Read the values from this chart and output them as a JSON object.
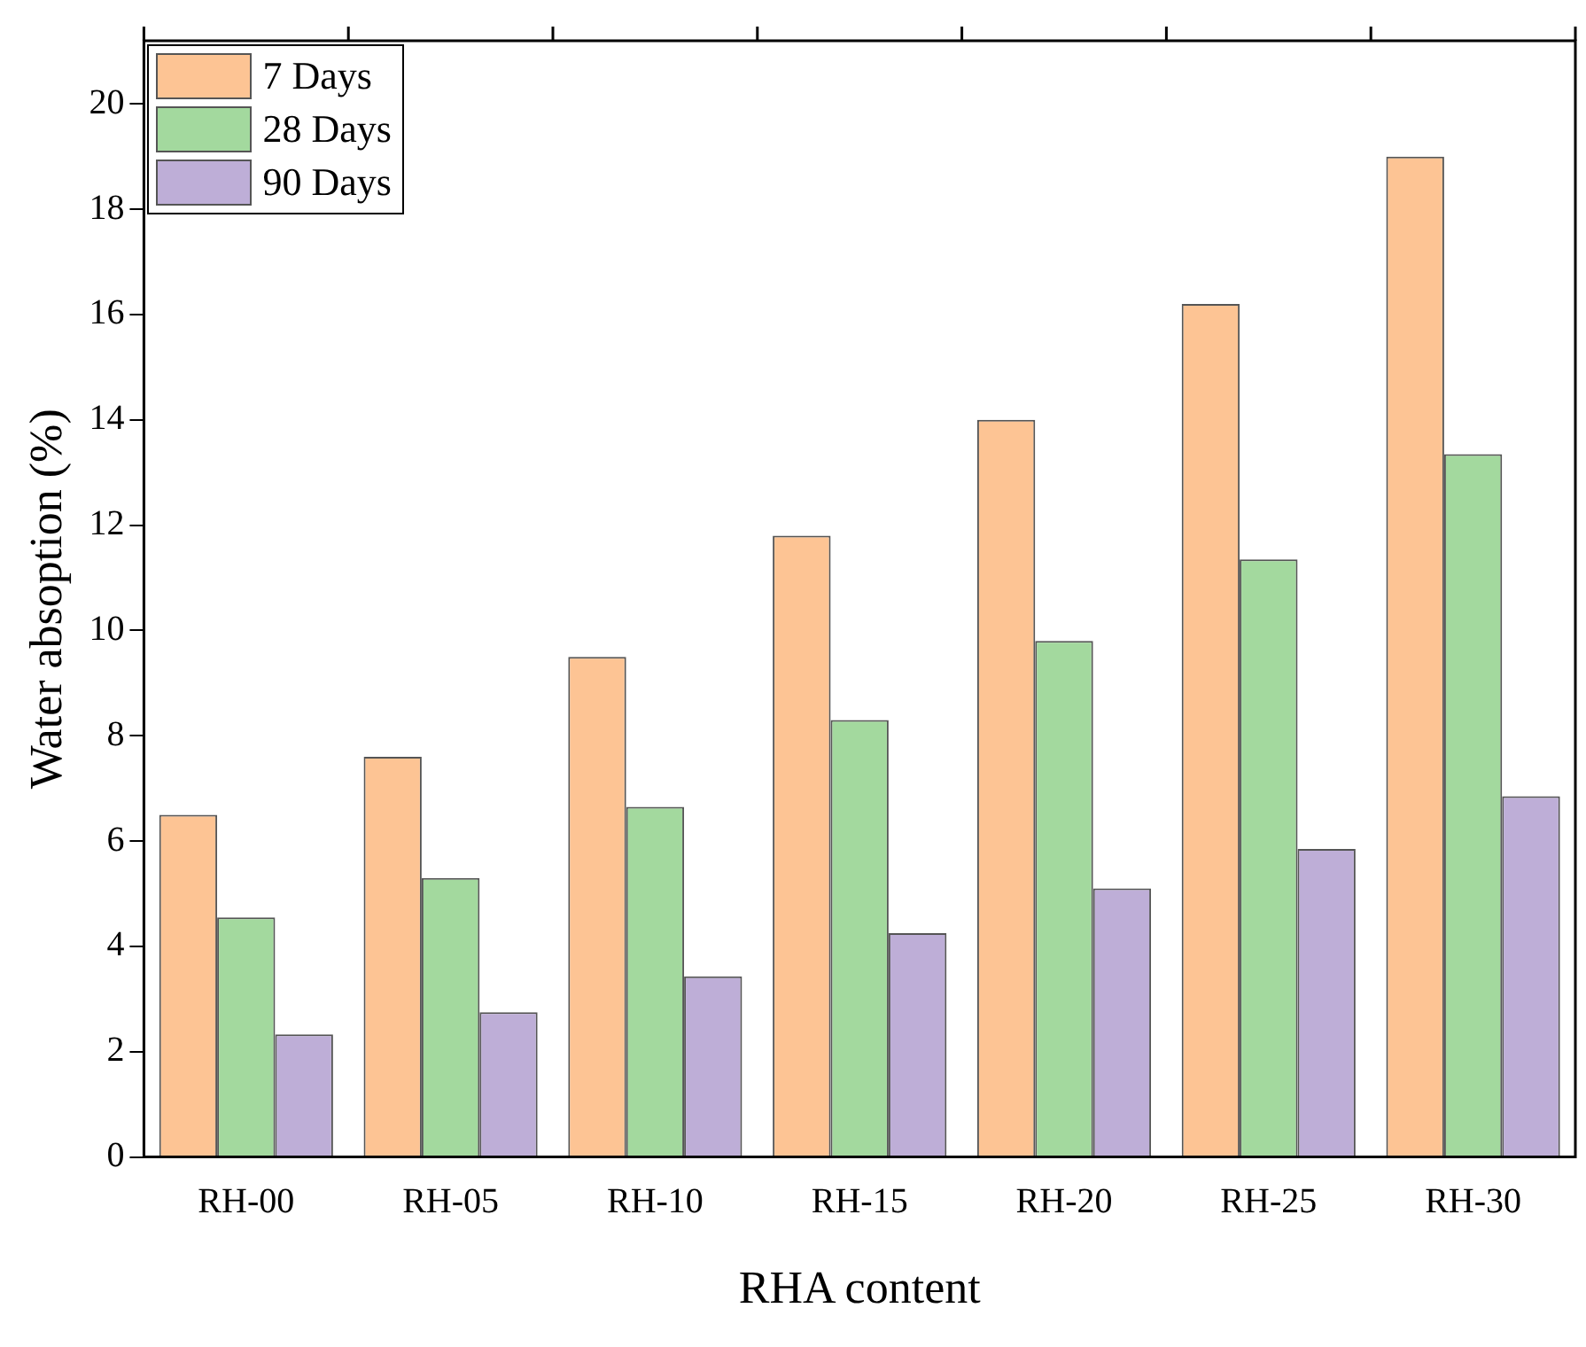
{
  "chart_data": {
    "type": "bar",
    "xlabel": "RHA content",
    "ylabel": "Water absoption (%)",
    "categories": [
      "RH-00",
      "RH-05",
      "RH-10",
      "RH-15",
      "RH-20",
      "RH-25",
      "RH-30"
    ],
    "series": [
      {
        "name": "7 Days",
        "color": "#fdc494",
        "values": [
          6.5,
          7.6,
          9.5,
          11.8,
          14.0,
          16.2,
          19.0
        ]
      },
      {
        "name": "28 Days",
        "color": "#a3d99e",
        "values": [
          4.55,
          5.3,
          6.65,
          8.3,
          9.8,
          11.35,
          13.35
        ]
      },
      {
        "name": "90 Days",
        "color": "#beaed7",
        "values": [
          2.33,
          2.75,
          3.43,
          4.25,
          5.1,
          5.85,
          6.85
        ]
      }
    ],
    "ylim": [
      0,
      21.2
    ],
    "yticks": [
      0,
      2,
      4,
      6,
      8,
      10,
      12,
      14,
      16,
      18,
      20
    ],
    "grid": false,
    "legend": "top left"
  }
}
